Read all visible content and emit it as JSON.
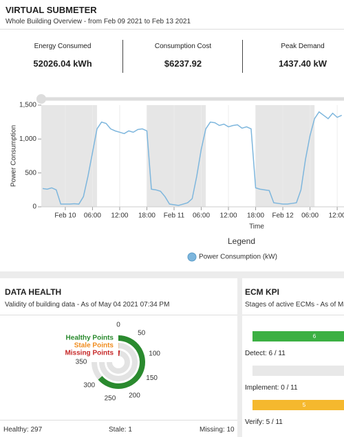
{
  "header": {
    "title": "VIRTUAL SUBMETER",
    "subtitle": "Whole Building Overview - from Feb 09 2021 to Feb 13 2021"
  },
  "kpis": [
    {
      "label": "Energy Consumed",
      "value": "52026.04 kWh"
    },
    {
      "label": "Consumption Cost",
      "value": "$6237.92"
    },
    {
      "label": "Peak Demand",
      "value": "1437.40 kW"
    }
  ],
  "chart_data": {
    "type": "line",
    "ylabel": "Power Consumption",
    "xlabel": "Time",
    "legend_title": "Legend",
    "x": [
      -5,
      -4,
      -3,
      -2,
      -1,
      0,
      1,
      2,
      3,
      4,
      5,
      6,
      7,
      8,
      9,
      10,
      11,
      12,
      13,
      14,
      15,
      16,
      17,
      18,
      19,
      20,
      21,
      22,
      23,
      24,
      25,
      26,
      27,
      28,
      29,
      30,
      31,
      32,
      33,
      34,
      35,
      36,
      37,
      38,
      39,
      40,
      41,
      42,
      43,
      44,
      45,
      46,
      47,
      48,
      49,
      50,
      51,
      52,
      53,
      54,
      55,
      56,
      57,
      58,
      59,
      60,
      61
    ],
    "series": [
      {
        "name": "Power Consumption (kW)",
        "color": "#7db6dd",
        "values": [
          270,
          260,
          280,
          250,
          40,
          40,
          40,
          45,
          40,
          150,
          450,
          800,
          1150,
          1250,
          1230,
          1150,
          1120,
          1100,
          1080,
          1120,
          1100,
          1140,
          1150,
          1120,
          260,
          250,
          230,
          150,
          40,
          30,
          20,
          40,
          60,
          120,
          450,
          850,
          1150,
          1250,
          1240,
          1200,
          1220,
          1180,
          1200,
          1210,
          1160,
          1180,
          1150,
          280,
          260,
          250,
          240,
          60,
          50,
          40,
          40,
          50,
          60,
          250,
          700,
          1050,
          1300,
          1400,
          1350,
          1300,
          1380,
          1320,
          1350
        ]
      }
    ],
    "xlim": [
      -5.3,
      61.5
    ],
    "ylim": [
      0,
      1500
    ],
    "yticks": [
      0,
      500,
      {
        "value": 1000,
        "label": "1,000"
      },
      {
        "value": 1500,
        "label": "1,500"
      }
    ],
    "xticks": [
      {
        "value": 0,
        "label": "Feb 10"
      },
      {
        "value": 6,
        "label": "06:00"
      },
      {
        "value": 12,
        "label": "12:00"
      },
      {
        "value": 18,
        "label": "18:00"
      },
      {
        "value": 24,
        "label": "Feb 11"
      },
      {
        "value": 30,
        "label": "06:00"
      },
      {
        "value": 36,
        "label": "12:00"
      },
      {
        "value": 42,
        "label": "18:00"
      },
      {
        "value": 48,
        "label": "Feb 12"
      },
      {
        "value": 54,
        "label": "06:00"
      },
      {
        "value": 60,
        "label": "12:00"
      }
    ],
    "shaded": [
      [
        -5.3,
        7
      ],
      [
        18,
        31
      ],
      [
        42,
        55
      ]
    ],
    "grid": true
  },
  "data_health": {
    "title": "DATA HEALTH",
    "subtitle": "Validity of building data - As of May 04 2021 07:34 PM",
    "range": [
      0,
      350
    ],
    "ticks": [
      0,
      50,
      100,
      150,
      200,
      250,
      300,
      350
    ],
    "series": [
      {
        "name": "Healthy Points",
        "value": 297,
        "color": "#2a8a2e"
      },
      {
        "name": "Stale Points",
        "value": 1,
        "color": "#f08c1e"
      },
      {
        "name": "Missing Points",
        "value": 10,
        "color": "#c62828"
      }
    ],
    "footer_labels": [
      "Healthy:",
      "Stale:",
      "Missing:"
    ]
  },
  "ecm_kpi": {
    "title": "ECM KPI",
    "subtitle": "Stages of active ECMs - As of May",
    "total": 11,
    "separator": "/",
    "stages": [
      {
        "label": "Detect:",
        "count": 6,
        "color": "#3cb043"
      },
      {
        "label": "Implement:",
        "count": 0,
        "color": "#3cb043"
      },
      {
        "label": "Verify:",
        "count": 5,
        "color": "#f5b82e"
      }
    ]
  }
}
